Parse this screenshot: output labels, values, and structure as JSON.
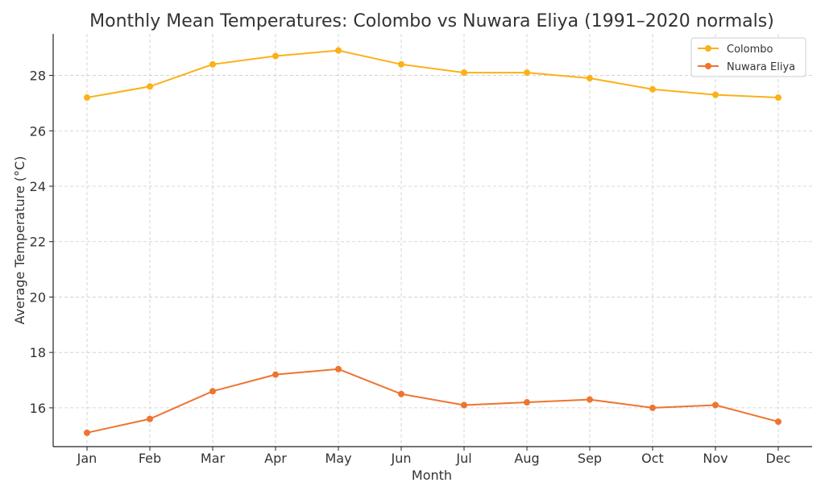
{
  "chart_data": {
    "type": "line",
    "title": "Monthly Mean Temperatures: Colombo vs Nuwara Eliya (1991–2020 normals)",
    "xlabel": "Month",
    "ylabel": "Average Temperature (°C)",
    "categories": [
      "Jan",
      "Feb",
      "Mar",
      "Apr",
      "May",
      "Jun",
      "Jul",
      "Aug",
      "Sep",
      "Oct",
      "Nov",
      "Dec"
    ],
    "ylim": [
      14.6,
      29.5
    ],
    "yticks": [
      16,
      18,
      20,
      22,
      24,
      26,
      28
    ],
    "grid": true,
    "legend_position": "top-right",
    "series": [
      {
        "name": "Colombo",
        "color": "#FBB117",
        "values": [
          27.2,
          27.6,
          28.4,
          28.7,
          28.9,
          28.4,
          28.1,
          28.1,
          27.9,
          27.5,
          27.3,
          27.2
        ]
      },
      {
        "name": "Nuwara Eliya",
        "color": "#EE7430",
        "values": [
          15.1,
          15.6,
          16.6,
          17.2,
          17.4,
          16.5,
          16.1,
          16.2,
          16.3,
          16.0,
          16.1,
          15.5
        ]
      }
    ]
  }
}
